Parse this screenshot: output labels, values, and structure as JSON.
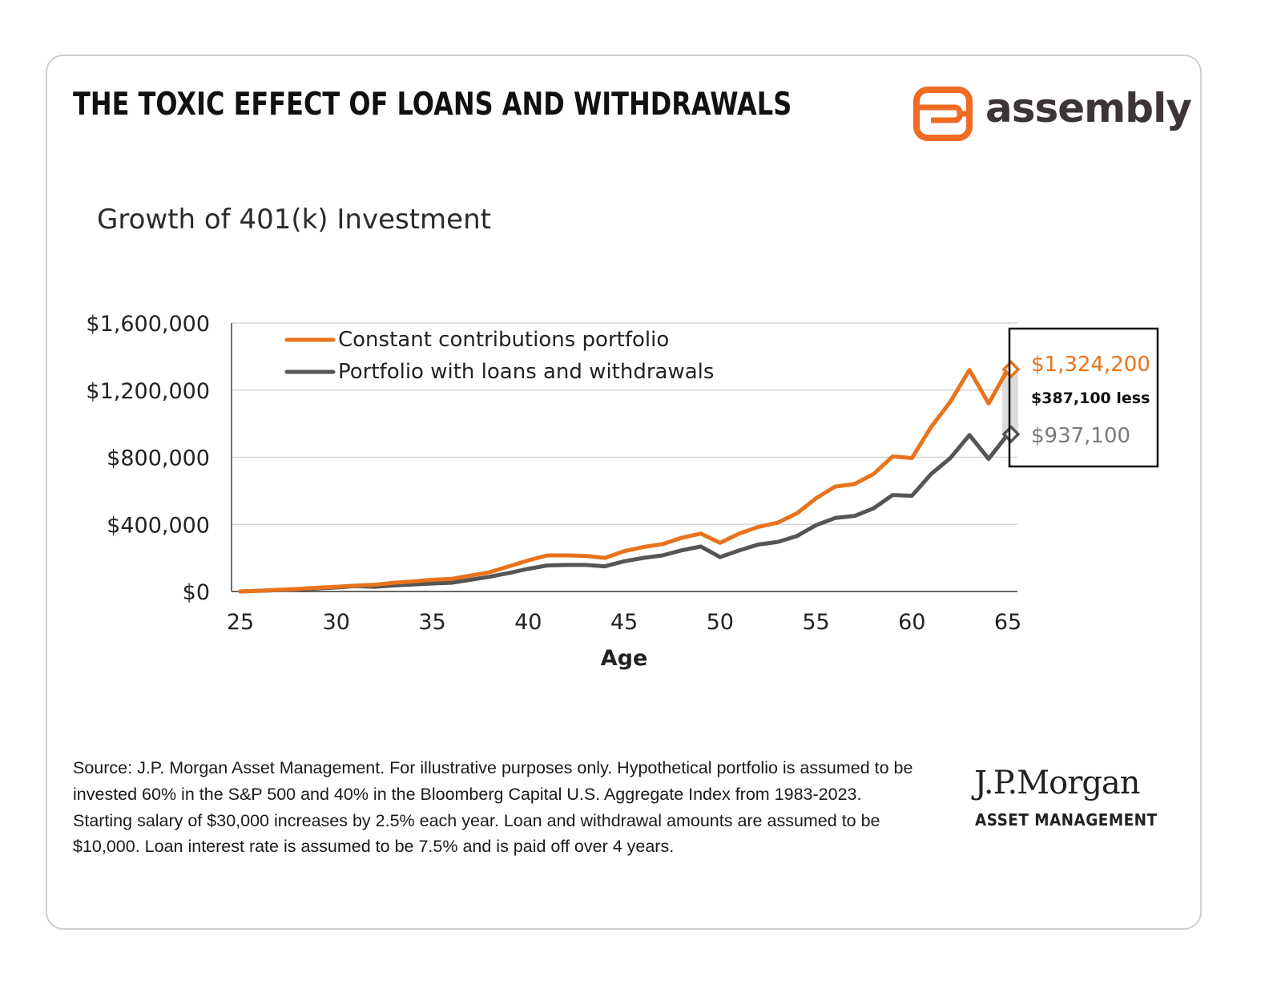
{
  "header": {
    "title": "THE TOXIC EFFECT OF LOANS AND WITHDRAWALS",
    "brand_name": "assembly",
    "brand_icon": "assembly-logo-icon",
    "brand_color": "#ef6a22"
  },
  "chart_data": {
    "type": "line",
    "title": "Growth of 401(k) Investment",
    "xlabel": "Age",
    "ylabel": "",
    "xlim": [
      25,
      65
    ],
    "ylim": [
      0,
      1600000
    ],
    "x_ticks": [
      25,
      30,
      35,
      40,
      45,
      50,
      55,
      60,
      65
    ],
    "y_ticks": [
      0,
      400000,
      800000,
      1200000,
      1600000
    ],
    "y_tick_labels": [
      "$0",
      "$400,000",
      "$800,000",
      "$1,200,000",
      "$1,600,000"
    ],
    "grid": "horizontal",
    "legend_position": "top-left",
    "x": [
      25,
      26,
      27,
      28,
      29,
      30,
      31,
      32,
      33,
      34,
      35,
      36,
      37,
      38,
      39,
      40,
      41,
      42,
      43,
      44,
      45,
      46,
      47,
      48,
      49,
      50,
      51,
      52,
      53,
      54,
      55,
      56,
      57,
      58,
      59,
      60,
      61,
      62,
      63,
      64,
      65
    ],
    "series": [
      {
        "name": "Constant contributions portfolio",
        "color": "#e8731c",
        "values": [
          0,
          5000,
          10000,
          15000,
          22000,
          28000,
          35000,
          40000,
          52000,
          60000,
          70000,
          75000,
          95000,
          115000,
          150000,
          185000,
          215000,
          215000,
          212000,
          200000,
          240000,
          265000,
          282000,
          320000,
          345000,
          290000,
          345000,
          385000,
          410000,
          465000,
          555000,
          625000,
          640000,
          700000,
          805000,
          795000,
          980000,
          1130000,
          1320000,
          1120000,
          1324200
        ]
      },
      {
        "name": "Portfolio with loans and withdrawals",
        "color": "#555555",
        "values": [
          0,
          4000,
          8000,
          12000,
          18000,
          24000,
          32000,
          28000,
          36000,
          42000,
          48000,
          52000,
          70000,
          88000,
          110000,
          135000,
          155000,
          158000,
          158000,
          150000,
          180000,
          200000,
          215000,
          245000,
          268000,
          205000,
          245000,
          280000,
          295000,
          330000,
          395000,
          438000,
          450000,
          495000,
          575000,
          570000,
          700000,
          795000,
          932000,
          790000,
          937100
        ]
      }
    ],
    "annotation": {
      "constant_end_label": "$1,324,200",
      "loans_end_label": "$937,100",
      "difference_label": "$387,100 less"
    }
  },
  "source_text": "Source: J.P. Morgan Asset Management. For illustrative purposes only. Hypothetical portfolio is assumed to be invested 60% in the S&P 500 and 40% in the Bloomberg Capital U.S. Aggregate Index from 1983-2023. Starting salary of $30,000 increases by 2.5% each year. Loan and withdrawal amounts are assumed to be $10,000. Loan interest rate is assumed to be 7.5% and is paid off over 4 years.",
  "footer": {
    "jpm_name": "J.P.Morgan",
    "jpm_sub": "ASSET MANAGEMENT"
  }
}
